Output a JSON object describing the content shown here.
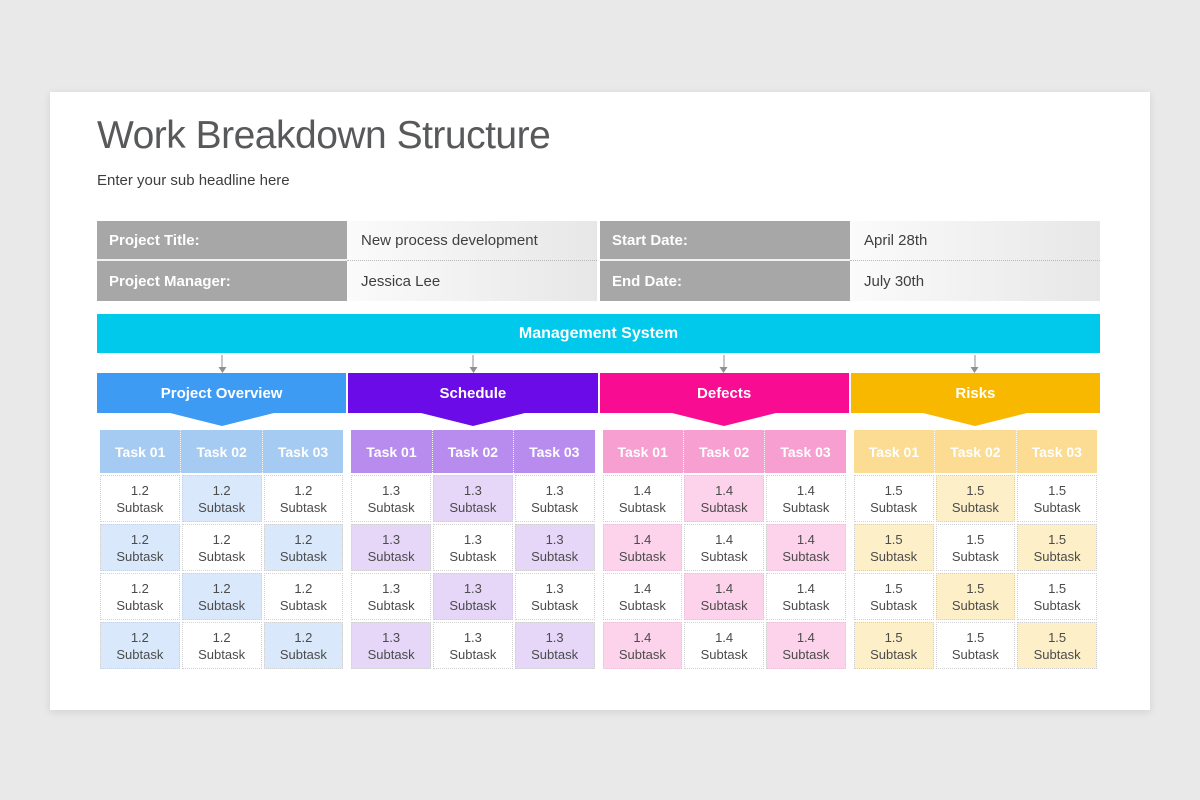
{
  "slide": {
    "title": "Work Breakdown Structure",
    "subtitle": "Enter your sub headline here"
  },
  "info_rows": [
    {
      "left_label": "Project Title:",
      "left_value": "New process development",
      "right_label": "Start Date:",
      "right_value": "April 28th"
    },
    {
      "left_label": "Project Manager:",
      "left_value": "Jessica Lee",
      "right_label": "End Date:",
      "right_value": "July 30th"
    }
  ],
  "banner": {
    "label": "Management System",
    "color": "#00c9ec"
  },
  "connector_color": "#8f8f8f",
  "sections": [
    {
      "title": "Project Overview",
      "color": "#3e9bf4",
      "task_header_tint": "#a6cbf3",
      "cell_tint": "#d9e9fb",
      "task_headers": [
        "Task 01",
        "Task 02",
        "Task 03"
      ],
      "subtask_id": "1.2",
      "subtask_label": "Subtask",
      "rows": 4
    },
    {
      "title": "Schedule",
      "color": "#6b0ce8",
      "task_header_tint": "#b88cef",
      "cell_tint": "#e6d7f8",
      "task_headers": [
        "Task 01",
        "Task 02",
        "Task 03"
      ],
      "subtask_id": "1.3",
      "subtask_label": "Subtask",
      "rows": 4
    },
    {
      "title": "Defects",
      "color": "#f70c92",
      "task_header_tint": "#f89fd1",
      "cell_tint": "#fcd3ea",
      "task_headers": [
        "Task 01",
        "Task 02",
        "Task 03"
      ],
      "subtask_id": "1.4",
      "subtask_label": "Subtask",
      "rows": 4
    },
    {
      "title": "Risks",
      "color": "#f9b800",
      "task_header_tint": "#fbdc92",
      "cell_tint": "#fdefc8",
      "task_headers": [
        "Task 01",
        "Task 02",
        "Task 03"
      ],
      "subtask_id": "1.5",
      "subtask_label": "Subtask",
      "rows": 4
    }
  ]
}
